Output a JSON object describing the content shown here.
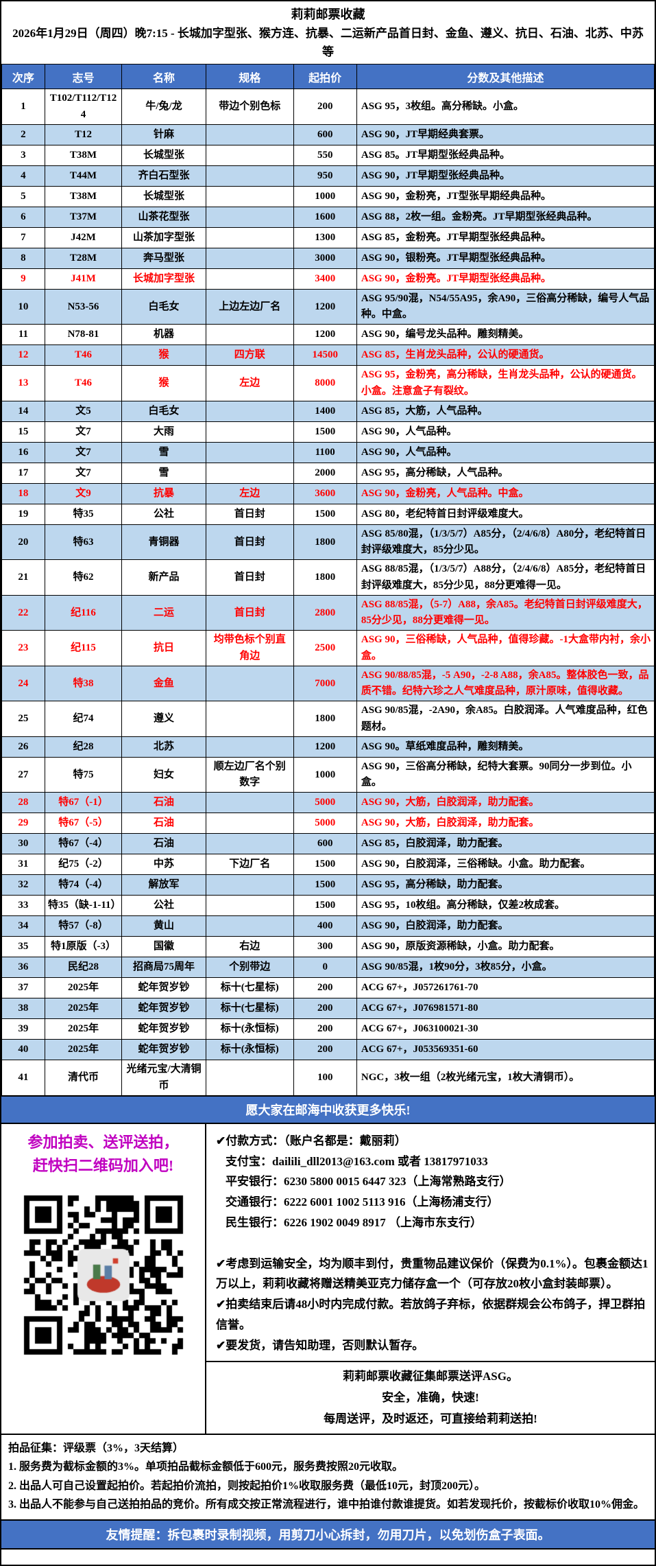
{
  "colors": {
    "header_blue": "#4472C4",
    "row_alt_blue": "#BDD7EE",
    "red": "#FF0000",
    "magenta": "#C000C0"
  },
  "header": {
    "title": "莉莉邮票收藏",
    "subtitle": "2026年1月29日（周四）晚7:15 - 长城加字型张、猴方连、抗暴、二运新产品首日封、金鱼、遵义、抗日、石油、北苏、中苏等"
  },
  "table": {
    "headers": [
      "次序",
      "志号",
      "名称",
      "规格",
      "起拍价",
      "分数及其他描述"
    ],
    "rows": [
      {
        "no": "1",
        "id": "T102/T112/T124",
        "name": "牛/兔/龙",
        "spec": "带边个别色标",
        "price": "200",
        "desc": "ASG 95，3枚组。高分稀缺。小盒。",
        "red": false
      },
      {
        "no": "2",
        "id": "T12",
        "name": "针麻",
        "spec": "",
        "price": "600",
        "desc": "ASG 90，JT早期经典套票。",
        "red": false
      },
      {
        "no": "3",
        "id": "T38M",
        "name": "长城型张",
        "spec": "",
        "price": "550",
        "desc": "ASG 85。JT早期型张经典品种。",
        "red": false
      },
      {
        "no": "4",
        "id": "T44M",
        "name": "齐白石型张",
        "spec": "",
        "price": "950",
        "desc": "ASG 90，JT早期型张经典品种。",
        "red": false
      },
      {
        "no": "5",
        "id": "T38M",
        "name": "长城型张",
        "spec": "",
        "price": "1000",
        "desc": "ASG 90，金粉亮，JT型张早期经典品种。",
        "red": false
      },
      {
        "no": "6",
        "id": "T37M",
        "name": "山茶花型张",
        "spec": "",
        "price": "1600",
        "desc": "ASG 88，2枚一组。金粉亮。JT早期型张经典品种。",
        "red": false
      },
      {
        "no": "7",
        "id": "J42M",
        "name": "山茶加字型张",
        "spec": "",
        "price": "1300",
        "desc": "ASG 85，金粉亮。JT早期型张经典品种。",
        "red": false
      },
      {
        "no": "8",
        "id": "T28M",
        "name": "奔马型张",
        "spec": "",
        "price": "3000",
        "desc": "ASG 90，银粉亮。JT早期型张经典品种。",
        "red": false
      },
      {
        "no": "9",
        "id": "J41M",
        "name": "长城加字型张",
        "spec": "",
        "price": "3400",
        "desc": "ASG 90，金粉亮。JT早期型张经典品种。",
        "red": true
      },
      {
        "no": "10",
        "id": "N53-56",
        "name": "白毛女",
        "spec": "上边左边厂名",
        "price": "1200",
        "desc": "ASG 95/90混，N54/55A95，余A90，三俗高分稀缺，编号人气品种。中盒。",
        "red": false
      },
      {
        "no": "11",
        "id": "N78-81",
        "name": "机器",
        "spec": "",
        "price": "1200",
        "desc": "ASG 90，编号龙头品种。雕刻精美。",
        "red": false
      },
      {
        "no": "12",
        "id": "T46",
        "name": "猴",
        "spec": "四方联",
        "price": "14500",
        "desc": "ASG 85，生肖龙头品种，公认的硬通货。",
        "red": true
      },
      {
        "no": "13",
        "id": "T46",
        "name": "猴",
        "spec": "左边",
        "price": "8000",
        "desc": "ASG 95，金粉亮，高分稀缺，生肖龙头品种，公认的硬通货。小盒。注意盒子有裂纹。",
        "red": true
      },
      {
        "no": "14",
        "id": "文5",
        "name": "白毛女",
        "spec": "",
        "price": "1400",
        "desc": "ASG 85，大筋，人气品种。",
        "red": false
      },
      {
        "no": "15",
        "id": "文7",
        "name": "大雨",
        "spec": "",
        "price": "1500",
        "desc": "ASG 90，人气品种。",
        "red": false
      },
      {
        "no": "16",
        "id": "文7",
        "name": "雪",
        "spec": "",
        "price": "1100",
        "desc": "ASG 90，人气品种。",
        "red": false
      },
      {
        "no": "17",
        "id": "文7",
        "name": "雪",
        "spec": "",
        "price": "2000",
        "desc": "ASG 95，高分稀缺，人气品种。",
        "red": false
      },
      {
        "no": "18",
        "id": "文9",
        "name": "抗暴",
        "spec": "左边",
        "price": "3600",
        "desc": "ASG 90，金粉亮，人气品种。中盒。",
        "red": true
      },
      {
        "no": "19",
        "id": "特35",
        "name": "公社",
        "spec": "首日封",
        "price": "1500",
        "desc": "ASG 80，老纪特首日封评级难度大。",
        "red": false
      },
      {
        "no": "20",
        "id": "特63",
        "name": "青铜器",
        "spec": "首日封",
        "price": "1800",
        "desc": "ASG 85/80混，（1/3/5/7）A85分，（2/4/6/8）A80分，老纪特首日封评级难度大，85分少见。",
        "red": false
      },
      {
        "no": "21",
        "id": "特62",
        "name": "新产品",
        "spec": "首日封",
        "price": "1800",
        "desc": "ASG 88/85混，（1/3/5/7）A88分，（2/4/6/8）A85分，老纪特首日封评级难度大，85分少见，88分更难得一见。",
        "red": false
      },
      {
        "no": "22",
        "id": "纪116",
        "name": "二运",
        "spec": "首日封",
        "price": "2800",
        "desc": "ASG 88/85混，（5-7）A88，余A85。老纪特首日封评级难度大，85分少见，88分更难得一见。",
        "red": true
      },
      {
        "no": "23",
        "id": "纪115",
        "name": "抗日",
        "spec": "均带色标个别直角边",
        "price": "2500",
        "desc": "ASG 90，三俗稀缺，人气品种，值得珍藏。-1大盒带内衬，余小盒。",
        "red": true
      },
      {
        "no": "24",
        "id": "特38",
        "name": "金鱼",
        "spec": "",
        "price": "7000",
        "desc": "ASG 90/88/85混，-5 A90，-2-8 A88，余A85。整体胶色一致，品质不错。纪特六珍之人气难度品种，原汁原味，值得收藏。",
        "red": true
      },
      {
        "no": "25",
        "id": "纪74",
        "name": "遵义",
        "spec": "",
        "price": "1800",
        "desc": "ASG 90/85混，-2A90，余A85。白胶润泽。人气难度品种，红色题材。",
        "red": false
      },
      {
        "no": "26",
        "id": "纪28",
        "name": "北苏",
        "spec": "",
        "price": "1200",
        "desc": "ASG 90。草纸难度品种，雕刻精美。",
        "red": false
      },
      {
        "no": "27",
        "id": "特75",
        "name": "妇女",
        "spec": "顺左边厂名个别数字",
        "price": "1000",
        "desc": "ASG 90，三俗高分稀缺，纪特大套票。90同分一步到位。小盒。",
        "red": false
      },
      {
        "no": "28",
        "id": "特67（-1）",
        "name": "石油",
        "spec": "",
        "price": "5000",
        "desc": "ASG 90，大筋，白胶润泽，助力配套。",
        "red": true
      },
      {
        "no": "29",
        "id": "特67（-5）",
        "name": "石油",
        "spec": "",
        "price": "5000",
        "desc": "ASG 90，大筋，白胶润泽，助力配套。",
        "red": true
      },
      {
        "no": "30",
        "id": "特67（-4）",
        "name": "石油",
        "spec": "",
        "price": "600",
        "desc": "ASG 85，白胶润泽，助力配套。",
        "red": false
      },
      {
        "no": "31",
        "id": "纪75（-2）",
        "name": "中苏",
        "spec": "下边厂名",
        "price": "1500",
        "desc": "ASG 90，白胶润泽，三俗稀缺。小盒。助力配套。",
        "red": false
      },
      {
        "no": "32",
        "id": "特74（-4）",
        "name": "解放军",
        "spec": "",
        "price": "1500",
        "desc": "ASG 95，高分稀缺，助力配套。",
        "red": false
      },
      {
        "no": "33",
        "id": "特35（缺-1-11）",
        "name": "公社",
        "spec": "",
        "price": "1500",
        "desc": "ASG 95，10枚组。高分稀缺，仅差2枚成套。",
        "red": false
      },
      {
        "no": "34",
        "id": "特57（-8）",
        "name": "黄山",
        "spec": "",
        "price": "400",
        "desc": "ASG 90，白胶润泽，助力配套。",
        "red": false
      },
      {
        "no": "35",
        "id": "特1原版（-3）",
        "name": "国徽",
        "spec": "右边",
        "price": "300",
        "desc": "ASG 90，原版资源稀缺，小盒。助力配套。",
        "red": false
      },
      {
        "no": "36",
        "id": "民纪28",
        "name": "招商局75周年",
        "spec": "个别带边",
        "price": "0",
        "desc": "ASG 90/85混，1枚90分，3枚85分，小盒。",
        "red": false
      },
      {
        "no": "37",
        "id": "2025年",
        "name": "蛇年贺岁钞",
        "spec": "标十(七星标)",
        "price": "200",
        "desc": "ACG 67+，J057261761-70",
        "red": false
      },
      {
        "no": "38",
        "id": "2025年",
        "name": "蛇年贺岁钞",
        "spec": "标十(七星标)",
        "price": "200",
        "desc": "ACG 67+，J076981571-80",
        "red": false
      },
      {
        "no": "39",
        "id": "2025年",
        "name": "蛇年贺岁钞",
        "spec": "标十(永恒标)",
        "price": "200",
        "desc": "ACG 67+，J063100021-30",
        "red": false
      },
      {
        "no": "40",
        "id": "2025年",
        "name": "蛇年贺岁钞",
        "spec": "标十(永恒标)",
        "price": "200",
        "desc": "ACG 67+，J053569351-60",
        "red": false
      },
      {
        "no": "41",
        "id": "清代币",
        "name": "光绪元宝/大清铜币",
        "spec": "",
        "price": "100",
        "desc": "NGC，3枚一组（2枚光绪元宝，1枚大清铜币）。",
        "red": false
      }
    ]
  },
  "banner": "愿大家在邮海中收获更多快乐!",
  "join": {
    "line1": "参加拍卖、送评送拍，",
    "line2": "赶快扫二维码加入吧!"
  },
  "payment": {
    "lines": [
      "✔付款方式：（账户名都是：戴丽莉）",
      "支付宝：dailili_dll2013@163.com  或者 13817971033",
      "平安银行：6230 5800 0015 6447 323（上海常熟路支行）",
      "交通银行：6222 6001 1002 5113 916（上海杨浦支行）",
      "民生银行：6226 1902 0049 8917 （上海市东支行）"
    ],
    "notes": [
      "✔考虑到运输安全，均为顺丰到付，贵重物品建议保价（保费为0.1%）。包裹金额达1万以上，莉莉收藏将赠送精美亚克力储存盒一个（可存放20枚小盒封装邮票）。",
      "✔拍卖结束后请48小时内完成付款。若放鸽子弃标，依据群规会公布鸽子，捍卫群拍信誉。",
      "✔要发货，请告知助理，否则默认暂存。"
    ]
  },
  "solicit": {
    "lines": [
      "莉莉邮票收藏征集邮票送评ASG。",
      "安全，准确，快速!",
      "每周送评，及时返还，可直接给莉莉送拍!"
    ]
  },
  "rules": {
    "title": "拍品征集：评级票（3%，3天结算）",
    "items": [
      "1. 服务费为截标金额的3%。单项拍品截标金额低于600元，服务费按照20元收取。",
      "2. 出品人可自己设置起拍价。若起拍价流拍，则按起拍价1%收取服务费（最低10元，封顶200元）。",
      "3. 出品人不能参与自己送拍拍品的竞价。所有成交按正常流程进行，谁中拍谁付款谁提货。如若发现托价，按截标价收取10%佣金。"
    ]
  },
  "reminder": "友情提醒：拆包裹时录制视频，用剪刀小心拆封，勿用刀片，以免划伤盒子表面。"
}
